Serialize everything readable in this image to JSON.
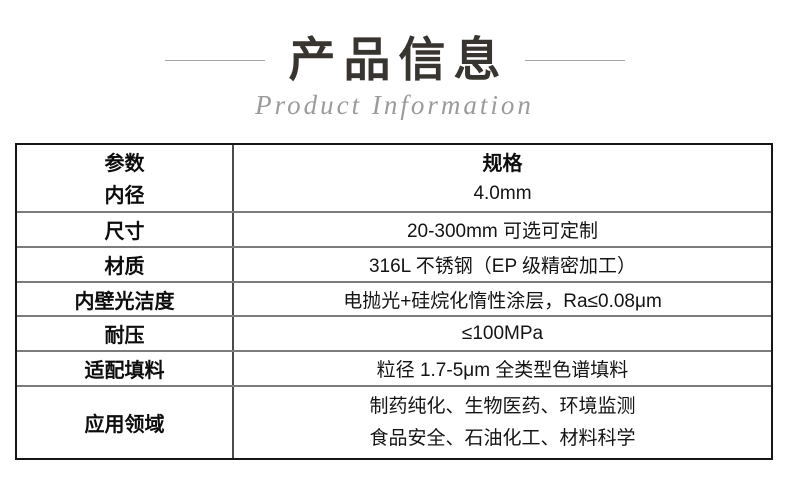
{
  "header": {
    "title": "产品信息",
    "subtitle": "Product Information"
  },
  "table": {
    "columns": [
      "参数",
      "规格"
    ],
    "rows": [
      {
        "param": "内径",
        "spec": [
          "4.0mm"
        ]
      },
      {
        "param": "尺寸",
        "spec": [
          "20-300mm 可选可定制"
        ]
      },
      {
        "param": "材质",
        "spec": [
          "316L 不锈钢（EP 级精密加工）"
        ]
      },
      {
        "param": "内壁光洁度",
        "spec": [
          "电抛光+硅烷化惰性涂层，Ra≤0.08μm"
        ]
      },
      {
        "param": "耐压",
        "spec": [
          "≤100MPa"
        ]
      },
      {
        "param": "适配填料",
        "spec": [
          "粒径 1.7-5μm 全类型色谱填料"
        ]
      },
      {
        "param": "应用领域",
        "spec": [
          "制药纯化、生物医药、环境监测",
          "食品安全、石油化工、材料科学"
        ]
      }
    ]
  },
  "colors": {
    "title_text": "#38342f",
    "subtitle_text": "#9b9b9b",
    "deco_line": "#a6a6a6",
    "table_outer_border": "#161616",
    "table_inner_horizontal": "#7c7c7c",
    "table_inner_vertical": "#4b4b4b",
    "background": "#ffffff"
  }
}
